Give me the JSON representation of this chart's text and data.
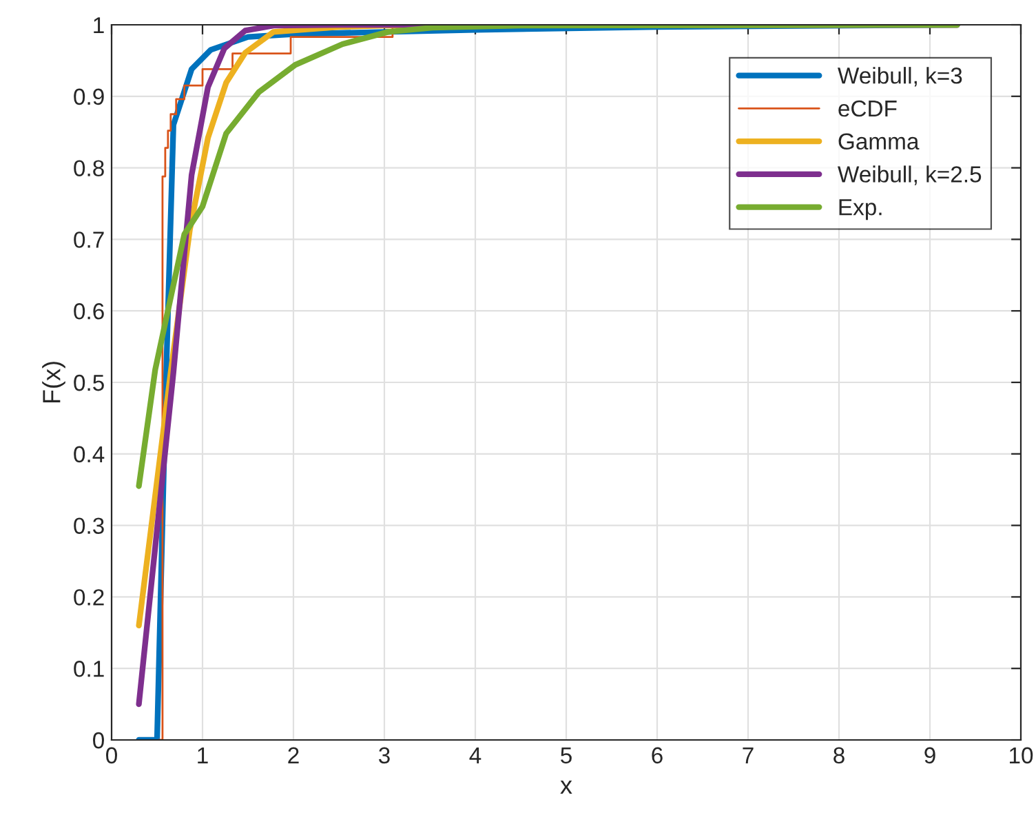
{
  "chart_data": {
    "type": "line",
    "xlabel": "x",
    "ylabel": "F(x)",
    "xlim": [
      0,
      10
    ],
    "ylim": [
      0,
      1
    ],
    "xticks": [
      0,
      1,
      2,
      3,
      4,
      5,
      6,
      7,
      8,
      9,
      10
    ],
    "yticks": [
      0,
      0.1,
      0.2,
      0.3,
      0.4,
      0.5,
      0.6,
      0.7,
      0.8,
      0.9,
      1
    ],
    "grid": true,
    "legend": "top right",
    "marker": "none",
    "line_style": "solid",
    "series": [
      {
        "name": "Weibull, k=3",
        "color": "#0072bd",
        "x": [
          0.3,
          0.5,
          0.6,
          0.68,
          0.88,
          1.09,
          1.5,
          2,
          3,
          4,
          6,
          9.3
        ],
        "values": [
          0,
          0,
          0.51,
          0.86,
          0.938,
          0.965,
          0.983,
          0.987,
          0.99,
          0.993,
          0.997,
          1
        ]
      },
      {
        "name": "eCDF",
        "type": "step",
        "color": "#d95319",
        "x": [
          0.52,
          0.56,
          0.59,
          0.62,
          0.65,
          0.71,
          0.8,
          1.0,
          1.33,
          1.97,
          3.09
        ],
        "values": [
          0,
          0.788,
          0.828,
          0.852,
          0.875,
          0.896,
          0.915,
          0.938,
          0.96,
          0.983,
          1.0
        ]
      },
      {
        "name": "Gamma",
        "color": "#edb120",
        "x": [
          0.3,
          0.65,
          0.86,
          1.06,
          1.26,
          1.47,
          1.78,
          2.5,
          3,
          9.3
        ],
        "values": [
          0.16,
          0.514,
          0.713,
          0.842,
          0.919,
          0.961,
          0.99,
          0.997,
          0.999,
          1
        ]
      },
      {
        "name": "Weibull, k=2.5",
        "color": "#7e2f8e",
        "x": [
          0.3,
          0.68,
          0.88,
          1.06,
          1.24,
          1.47,
          1.78,
          2.5,
          9.3
        ],
        "values": [
          0.05,
          0.514,
          0.79,
          0.913,
          0.967,
          0.992,
          0.999,
          1,
          1
        ]
      },
      {
        "name": "Exp.",
        "color": "#77ac30",
        "x": [
          0.3,
          0.48,
          0.8,
          1.0,
          1.26,
          1.62,
          2.02,
          2.54,
          3.04,
          3.53,
          4.5,
          9.3
        ],
        "values": [
          0.355,
          0.518,
          0.707,
          0.746,
          0.848,
          0.906,
          0.944,
          0.973,
          0.99,
          0.996,
          0.999,
          1
        ]
      }
    ]
  }
}
